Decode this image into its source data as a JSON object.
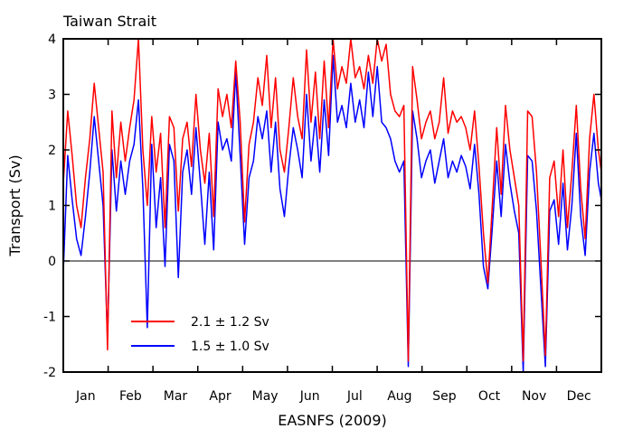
{
  "chart_data": {
    "type": "line",
    "title": "Taiwan Strait",
    "xlabel": "EASNFS (2009)",
    "ylabel": "Transport (Sv)",
    "ylim": [
      -2,
      4
    ],
    "yticks": [
      -2,
      -1,
      0,
      1,
      2,
      3,
      4
    ],
    "xlim": [
      0,
      365
    ],
    "xtick_labels": [
      "Jan",
      "Feb",
      "Mar",
      "Apr",
      "May",
      "Jun",
      "Jul",
      "Aug",
      "Sep",
      "Oct",
      "Nov",
      "Dec"
    ],
    "grid": false,
    "zero_line": true,
    "legend_position": "bottom-left",
    "series": [
      {
        "name": "2.1 ± 1.2 Sv",
        "color": "#ff0000",
        "x": [
          0,
          3,
          6,
          9,
          12,
          15,
          18,
          21,
          24,
          27,
          30,
          33,
          36,
          39,
          42,
          45,
          48,
          51,
          54,
          57,
          60,
          63,
          66,
          69,
          72,
          75,
          78,
          81,
          84,
          87,
          90,
          93,
          96,
          99,
          102,
          105,
          108,
          111,
          114,
          117,
          120,
          123,
          126,
          129,
          132,
          135,
          138,
          141,
          144,
          147,
          150,
          153,
          156,
          159,
          162,
          165,
          168,
          171,
          174,
          177,
          180,
          183,
          186,
          189,
          192,
          195,
          198,
          201,
          204,
          207,
          210,
          213,
          216,
          219,
          222,
          225,
          228,
          231,
          234,
          237,
          240,
          243,
          246,
          249,
          252,
          255,
          258,
          261,
          264,
          267,
          270,
          273,
          276,
          279,
          282,
          285,
          288,
          291,
          294,
          297,
          300,
          303,
          306,
          309,
          312,
          315,
          318,
          321,
          324,
          327,
          330,
          333,
          336,
          339,
          342,
          345,
          348,
          351,
          354,
          357,
          360,
          363,
          365
        ],
        "y": [
          1.4,
          2.7,
          1.9,
          1.0,
          0.6,
          1.5,
          2.2,
          3.2,
          2.4,
          1.6,
          -1.6,
          2.7,
          1.5,
          2.5,
          1.8,
          2.4,
          2.9,
          4.0,
          2.0,
          1.0,
          2.6,
          1.6,
          2.3,
          0.6,
          2.6,
          2.4,
          0.9,
          2.2,
          2.5,
          1.7,
          3.0,
          2.0,
          1.4,
          2.3,
          0.8,
          3.1,
          2.6,
          3.0,
          2.4,
          3.6,
          2.5,
          0.7,
          2.1,
          2.5,
          3.3,
          2.8,
          3.7,
          2.4,
          3.3,
          2.0,
          1.6,
          2.4,
          3.3,
          2.6,
          2.2,
          3.8,
          2.5,
          3.4,
          2.2,
          3.6,
          2.4,
          4.0,
          3.1,
          3.5,
          3.2,
          4.0,
          3.3,
          3.5,
          3.1,
          3.7,
          3.2,
          4.0,
          3.6,
          3.9,
          3.0,
          2.7,
          2.6,
          2.8,
          -1.8,
          3.5,
          2.9,
          2.2,
          2.5,
          2.7,
          2.2,
          2.5,
          3.3,
          2.3,
          2.7,
          2.5,
          2.6,
          2.4,
          2.0,
          2.7,
          1.7,
          0.5,
          -0.4,
          1.0,
          2.4,
          1.2,
          2.8,
          2.0,
          1.5,
          1.0,
          -1.8,
          2.7,
          2.6,
          1.6,
          0.0,
          -1.7,
          1.5,
          1.8,
          0.8,
          2.0,
          0.6,
          1.6,
          2.8,
          1.3,
          0.4,
          2.2,
          3.0,
          2.0,
          1.6
        ],
        "values_note": ""
      },
      {
        "name": "1.5 ± 1.0 Sv",
        "color": "#0000ff",
        "x": [
          0,
          3,
          6,
          9,
          12,
          15,
          18,
          21,
          24,
          27,
          30,
          33,
          36,
          39,
          42,
          45,
          48,
          51,
          54,
          57,
          60,
          63,
          66,
          69,
          72,
          75,
          78,
          81,
          84,
          87,
          90,
          93,
          96,
          99,
          102,
          105,
          108,
          111,
          114,
          117,
          120,
          123,
          126,
          129,
          132,
          135,
          138,
          141,
          144,
          147,
          150,
          153,
          156,
          159,
          162,
          165,
          168,
          171,
          174,
          177,
          180,
          183,
          186,
          189,
          192,
          195,
          198,
          201,
          204,
          207,
          210,
          213,
          216,
          219,
          222,
          225,
          228,
          231,
          234,
          237,
          240,
          243,
          246,
          249,
          252,
          255,
          258,
          261,
          264,
          267,
          270,
          273,
          276,
          279,
          282,
          285,
          288,
          291,
          294,
          297,
          300,
          303,
          306,
          309,
          312,
          315,
          318,
          321,
          324,
          327,
          330,
          333,
          336,
          339,
          342,
          345,
          348,
          351,
          354,
          357,
          360,
          363,
          365
        ],
        "y": [
          -0.2,
          1.9,
          1.1,
          0.4,
          0.1,
          0.8,
          1.6,
          2.6,
          1.8,
          1.0,
          -1.4,
          2.0,
          0.9,
          1.8,
          1.2,
          1.8,
          2.1,
          2.9,
          1.3,
          -1.2,
          2.1,
          0.6,
          1.5,
          -0.1,
          2.1,
          1.8,
          -0.3,
          1.6,
          2.0,
          1.2,
          2.4,
          1.4,
          0.3,
          1.6,
          0.2,
          2.5,
          2.0,
          2.2,
          1.8,
          3.4,
          1.9,
          0.3,
          1.5,
          1.8,
          2.6,
          2.2,
          2.7,
          1.6,
          2.5,
          1.3,
          0.8,
          1.7,
          2.4,
          2.0,
          1.5,
          3.0,
          1.8,
          2.6,
          1.6,
          2.9,
          1.9,
          3.7,
          2.5,
          2.8,
          2.4,
          3.2,
          2.5,
          2.9,
          2.4,
          3.4,
          2.6,
          3.5,
          2.5,
          2.4,
          2.2,
          1.8,
          1.6,
          1.8,
          -1.9,
          2.7,
          2.2,
          1.5,
          1.8,
          2.0,
          1.4,
          1.8,
          2.2,
          1.5,
          1.8,
          1.6,
          1.9,
          1.7,
          1.3,
          2.1,
          1.2,
          -0.1,
          -0.5,
          0.6,
          1.8,
          0.8,
          2.1,
          1.4,
          0.9,
          0.5,
          -2.0,
          1.9,
          1.8,
          0.9,
          -0.5,
          -1.9,
          0.9,
          1.1,
          0.3,
          1.4,
          0.2,
          1.0,
          2.3,
          0.8,
          0.1,
          1.6,
          2.3,
          1.4,
          1.1
        ],
        "values_note": ""
      }
    ]
  }
}
